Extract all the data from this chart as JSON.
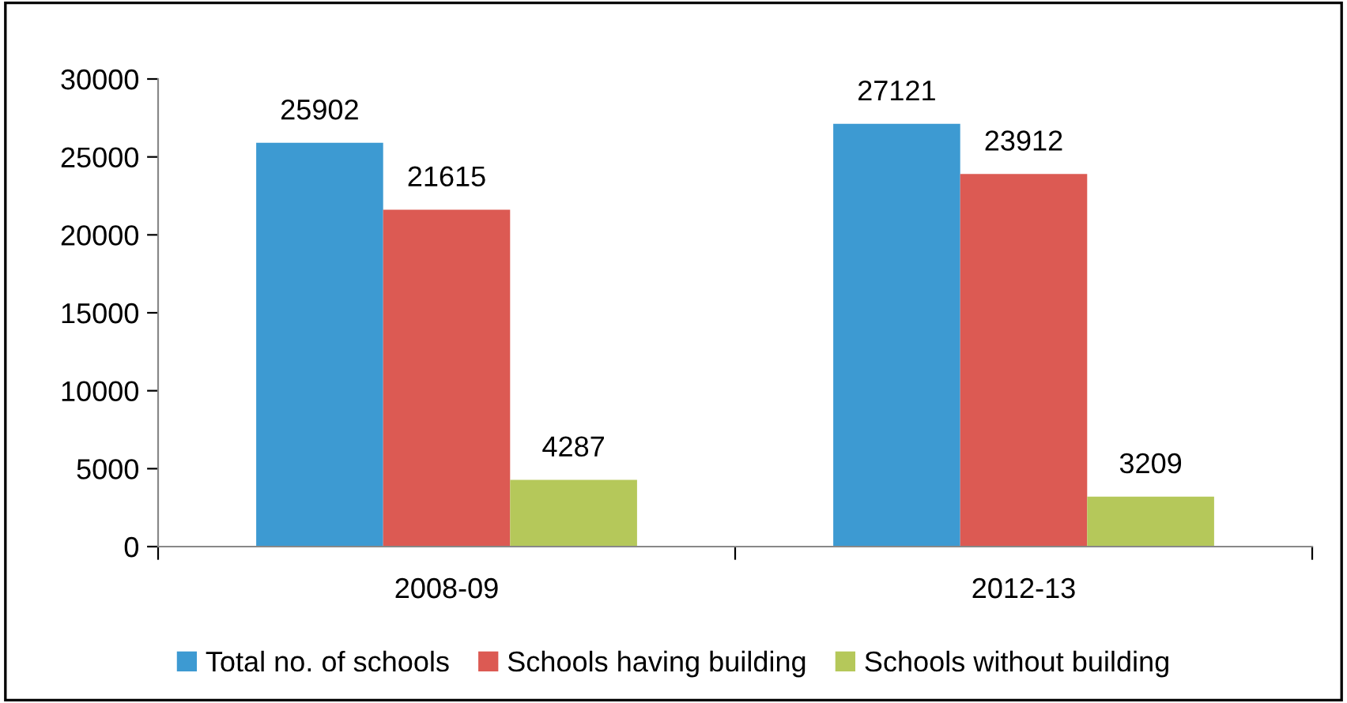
{
  "chart_data": {
    "type": "bar",
    "categories": [
      "2008-09",
      "2012-13"
    ],
    "series": [
      {
        "name": "Total no. of schools",
        "color": "#3d9ad2",
        "values": [
          25902,
          27121
        ]
      },
      {
        "name": "Schools having building",
        "color": "#dc5a53",
        "values": [
          21615,
          23912
        ]
      },
      {
        "name": "Schools without building",
        "color": "#b5c85a",
        "values": [
          4287,
          3209
        ]
      }
    ],
    "ylim": [
      0,
      30000
    ],
    "yticks": [
      0,
      5000,
      10000,
      15000,
      20000,
      25000,
      30000
    ],
    "data_labels": true,
    "grid": false,
    "legend": "bottom"
  }
}
